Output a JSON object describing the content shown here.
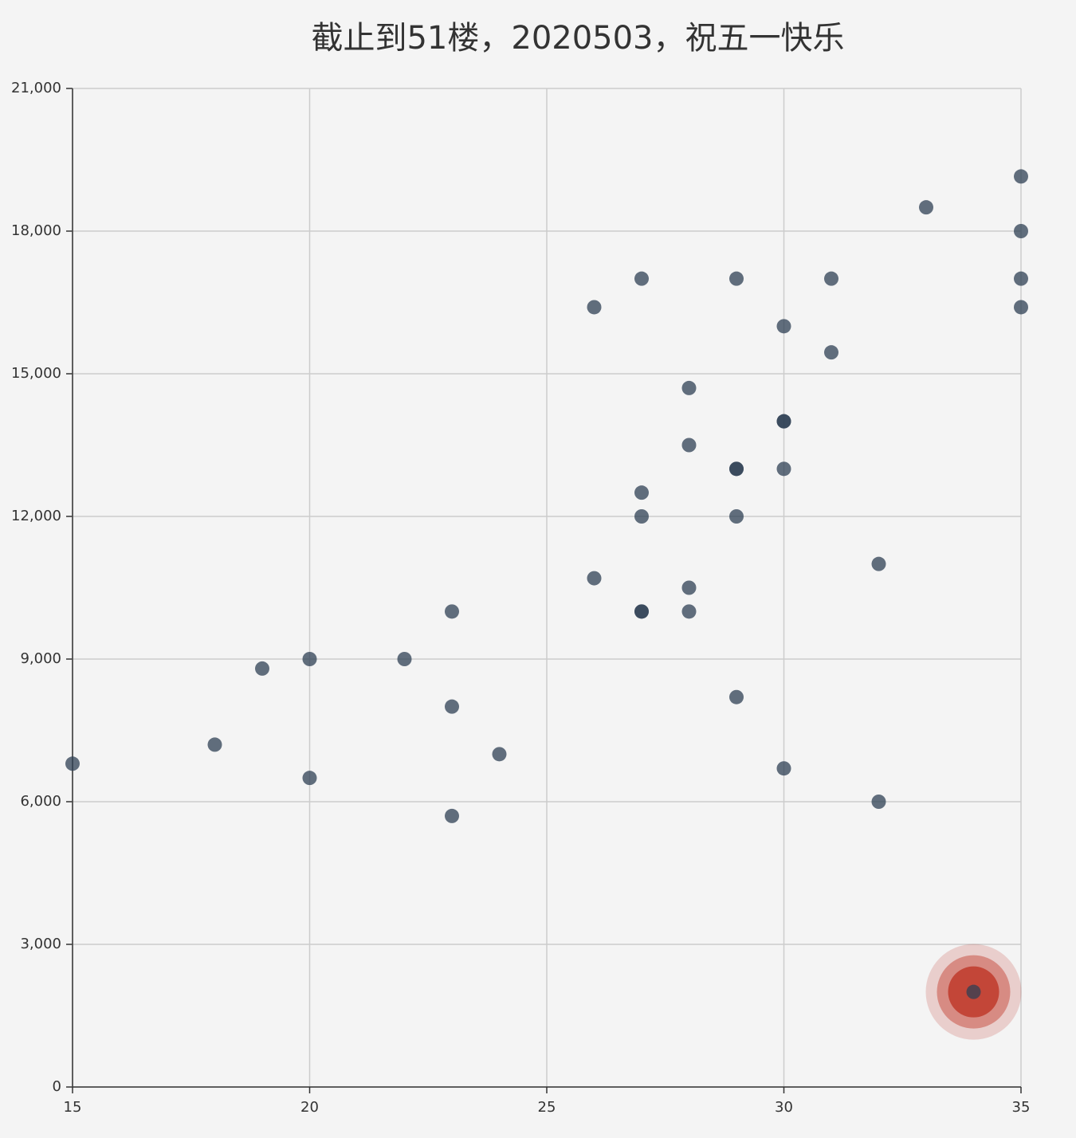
{
  "chart_data": {
    "type": "scatter",
    "title": "截止到51楼，2020503，祝五一快乐",
    "x": [
      15,
      18,
      19,
      20,
      20,
      22,
      23,
      23,
      23,
      24,
      26,
      26,
      27,
      27,
      27,
      27,
      27,
      28,
      28,
      28,
      28,
      29,
      29,
      29,
      29,
      29,
      30,
      30,
      30,
      30,
      30,
      31,
      31,
      32,
      32,
      33,
      34,
      35,
      35,
      35,
      35
    ],
    "y": [
      6800,
      7200,
      8800,
      9000,
      6500,
      9000,
      10000,
      8000,
      5700,
      7000,
      16400,
      10700,
      17000,
      12500,
      12000,
      10000,
      10000,
      14700,
      13500,
      10500,
      10000,
      17000,
      13000,
      13000,
      12000,
      8200,
      16000,
      14000,
      14000,
      13000,
      6700,
      17000,
      15450,
      11000,
      6000,
      18500,
      2000,
      19150,
      18000,
      17000,
      16400
    ],
    "color": "#2f4054",
    "highlight": {
      "index": 36,
      "color": "#c0392b"
    },
    "xlim": [
      15,
      35
    ],
    "xticks": [
      15,
      20,
      25,
      30,
      35
    ],
    "ylim": [
      0,
      21000
    ],
    "yticks": [
      0,
      {
        "value": 3000,
        "label": "3,000"
      },
      {
        "value": 6000,
        "label": "6,000"
      },
      {
        "value": 9000,
        "label": "9,000"
      },
      {
        "value": 12000,
        "label": "12,000"
      },
      {
        "value": 15000,
        "label": "15,000"
      },
      {
        "value": 18000,
        "label": "18,000"
      },
      {
        "value": 21000,
        "label": "21,000"
      }
    ],
    "grid": true
  }
}
